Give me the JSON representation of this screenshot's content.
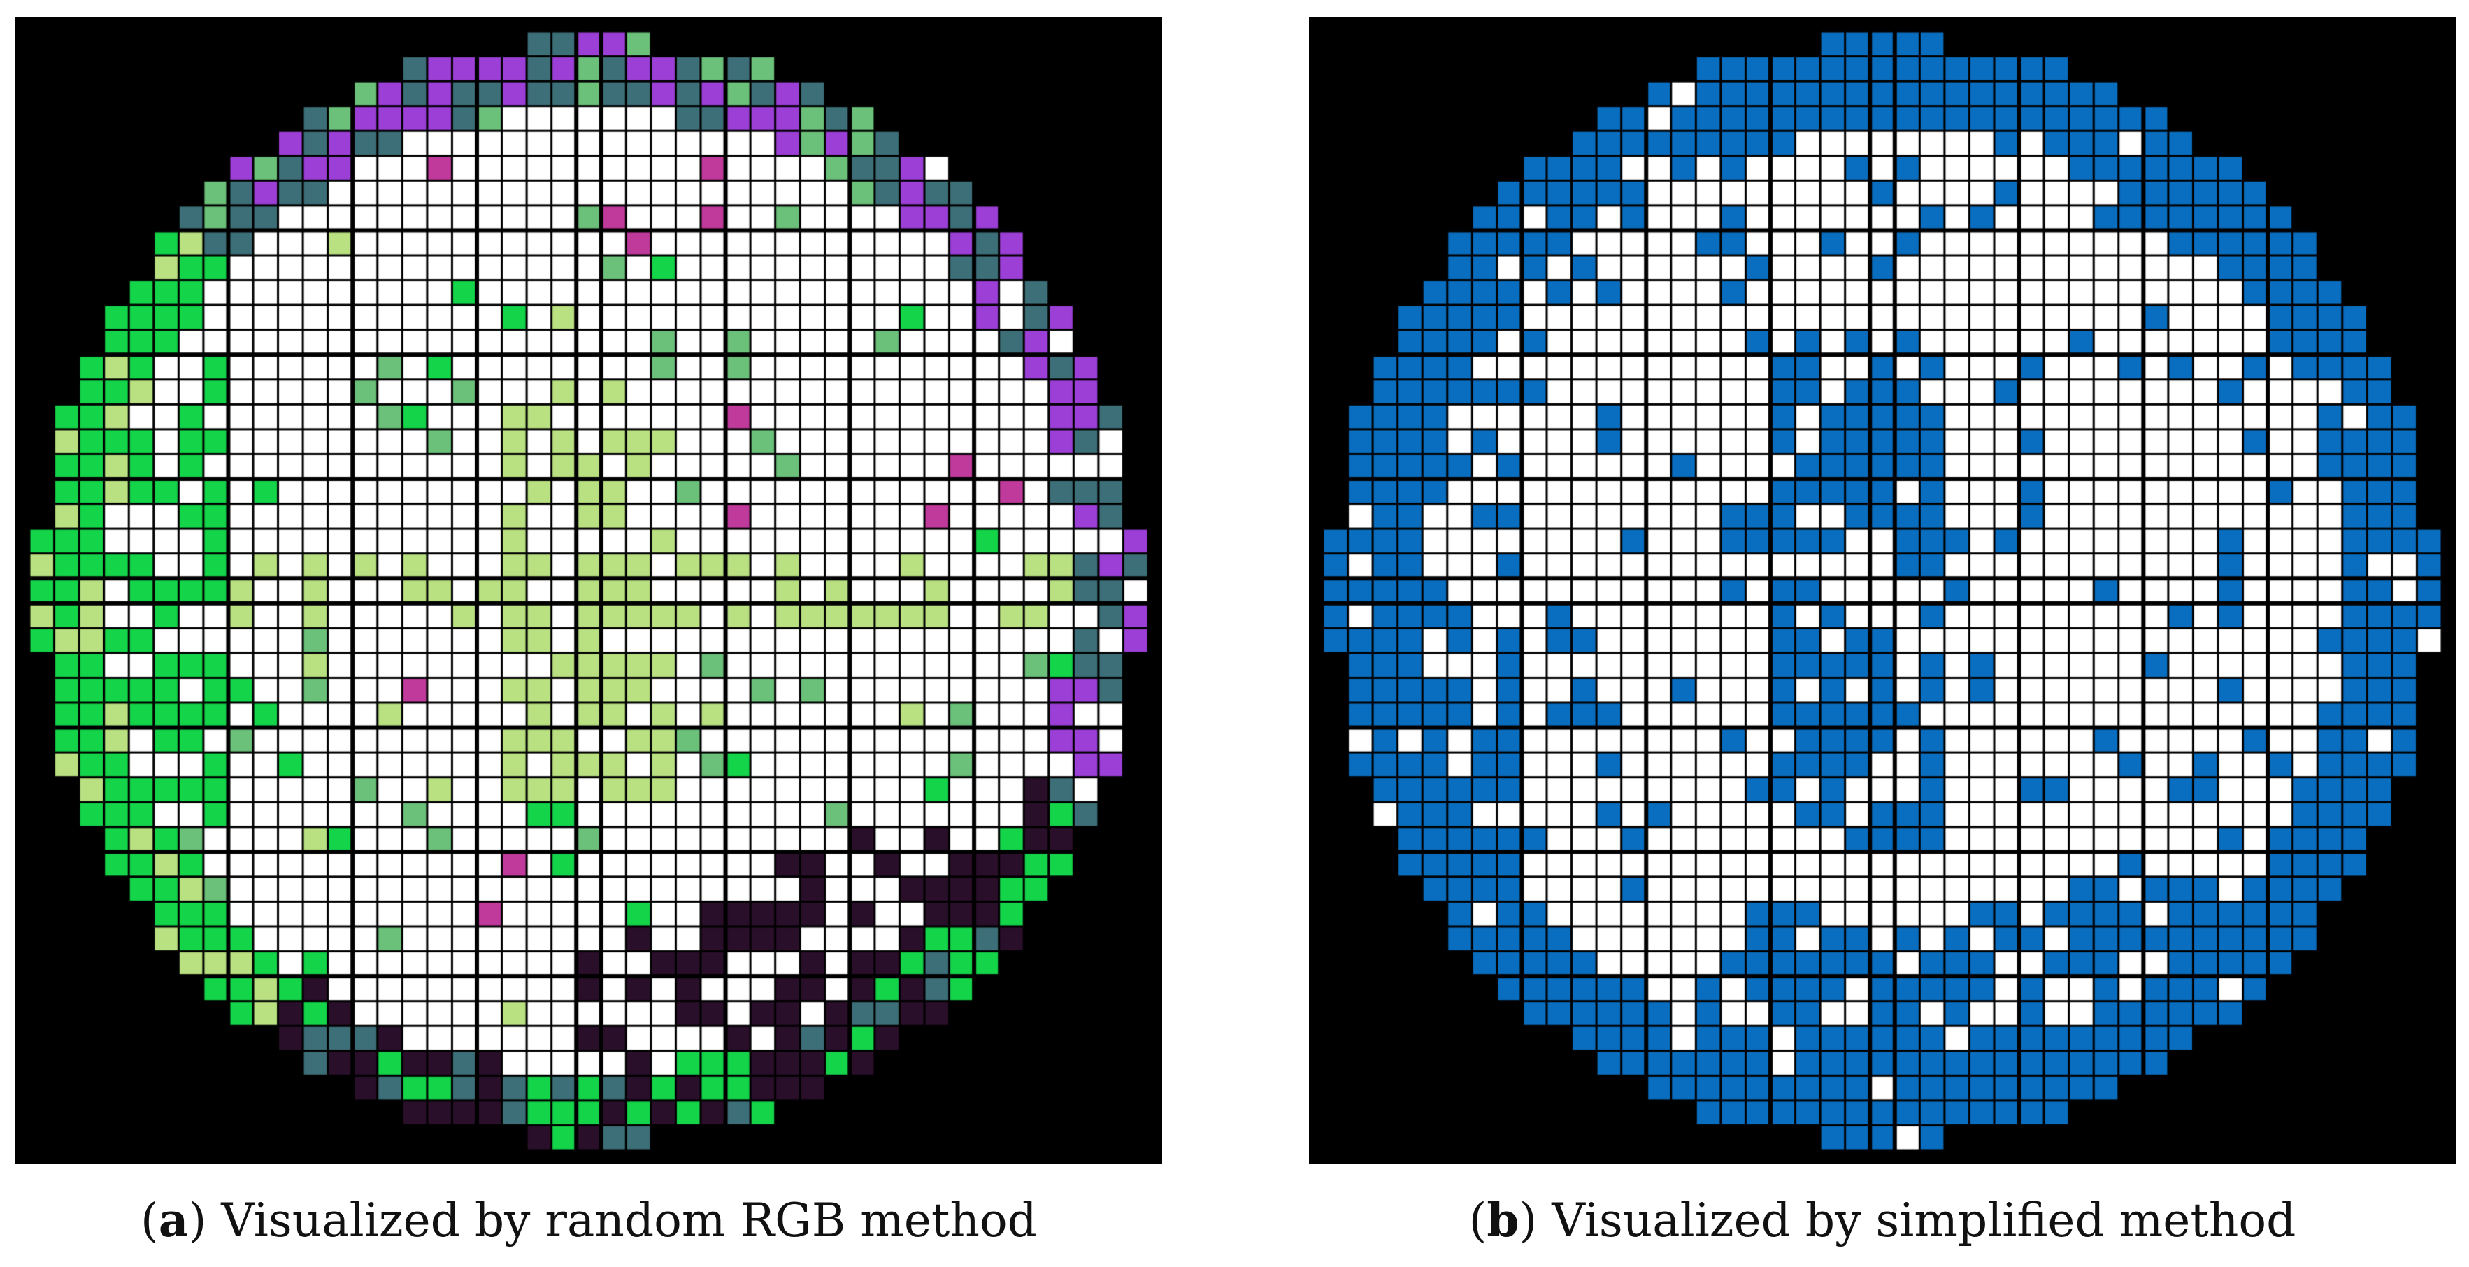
{
  "figure": {
    "panels": [
      {
        "id": "a",
        "label": "a",
        "caption": "Visualized by random RGB method",
        "map": {
          "grid_cols": 45,
          "grid_rows": 45,
          "background_color": "#000000",
          "good_die_color": "#ffffff",
          "palette": [
            "#9b3fd6",
            "#3d6f79",
            "#14d44a",
            "#b9e081",
            "#ffffff",
            "#6bc07a",
            "#2a0f2a",
            "#111111",
            "#b1a7d8",
            "#c03a9c",
            "#6d7f0e",
            "#1f9fa0",
            "#4c6fe0",
            "#7bc21c",
            "#0a4f0a"
          ]
        }
      },
      {
        "id": "b",
        "label": "b",
        "caption": "Visualized by simplified method",
        "map": {
          "grid_cols": 45,
          "grid_rows": 45,
          "background_color": "#000000",
          "good_die_color": "#ffffff",
          "defect_color": "#0a6ec0",
          "minor_color": "#8f8f8f"
        }
      }
    ]
  }
}
